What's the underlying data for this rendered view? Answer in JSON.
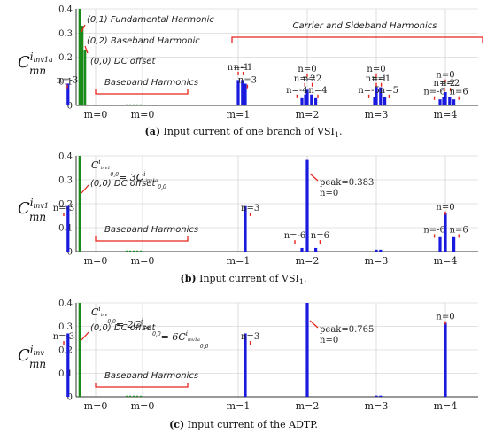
{
  "colors": {
    "blue": "#1a1adf",
    "green": "#1a8a1a",
    "red": "#e8251c",
    "grid": "#c8c8c8",
    "axis": "#333333"
  },
  "chart_data": [
    {
      "type": "bar",
      "panel": "a",
      "ylabel_main": "C",
      "ylabel_sub": "mn",
      "ylabel_sup": "i",
      "ylabel_sup_sub": "inv1a",
      "ylim": [
        0,
        0.4
      ],
      "yticks": [
        "0",
        "0.1",
        "0.2",
        "0.3",
        "0.4"
      ],
      "xticks": [
        "m=0",
        "m=0",
        "m=1",
        "m=2",
        "m=3",
        "m=4"
      ],
      "caption_label": "(a)",
      "caption_text": "Input current of one branch of VSI",
      "caption_sub": "1",
      "caption_end": ".",
      "green_bars": [
        {
          "x": 0.0,
          "value": 0.4
        },
        {
          "x": 0.012,
          "value": 0.33
        },
        {
          "x": 0.024,
          "value": 0.23
        }
      ],
      "blue_bars": [
        {
          "x": 1.0,
          "n": -1,
          "value": 0.105
        },
        {
          "x": 1.06,
          "n": 1,
          "value": 0.105
        },
        {
          "x": 0.96,
          "n": -3,
          "value": 0.09
        },
        {
          "x": 1.1,
          "n": 3,
          "value": 0.09
        },
        {
          "x": 2.0,
          "n": 0,
          "value": 0.065
        },
        {
          "x": 1.95,
          "n": -2,
          "value": 0.045
        },
        {
          "x": 2.06,
          "n": 2,
          "value": 0.045
        },
        {
          "x": 1.9,
          "n": -4,
          "value": 0.03
        },
        {
          "x": 2.12,
          "n": 4,
          "value": 0.03
        },
        {
          "x": 3.0,
          "n": -1,
          "value": 0.075
        },
        {
          "x": 3.06,
          "n": 1,
          "value": 0.075
        },
        {
          "x": 2.95,
          "n": -5,
          "value": 0.035
        },
        {
          "x": 3.12,
          "n": 5,
          "value": 0.035
        },
        {
          "x": 4.0,
          "n": 0,
          "value": 0.055
        },
        {
          "x": 3.95,
          "n": -2,
          "value": 0.035
        },
        {
          "x": 4.06,
          "n": 2,
          "value": 0.035
        },
        {
          "x": 3.9,
          "n": -6,
          "value": 0.025
        },
        {
          "x": 4.12,
          "n": 6,
          "value": 0.025
        }
      ],
      "annotations": {
        "fund": "(0,1) Fundamental Harmonic",
        "base": "(0,2) Baseband Harmonic",
        "dc": "(0,0) DC offset",
        "baseband": "Baseband Harmonics",
        "carrier": "Carrier and Sideband Harmonics"
      },
      "n_labels": [
        {
          "text": "n=-1",
          "x": 1.0,
          "y": 0.147
        },
        {
          "text": "n=1",
          "x": 1.07,
          "y": 0.147
        },
        {
          "text": "n=-3",
          "x": 0.95,
          "y": 0.093
        },
        {
          "text": "n=3",
          "x": 1.13,
          "y": 0.093
        },
        {
          "text": "n=0",
          "x": 2.0,
          "y": 0.14
        },
        {
          "text": "n=-2",
          "x": 1.94,
          "y": 0.1
        },
        {
          "text": "n=2",
          "x": 2.07,
          "y": 0.1
        },
        {
          "text": "n=-4",
          "x": 1.83,
          "y": 0.052
        },
        {
          "text": "n=4",
          "x": 2.15,
          "y": 0.052
        },
        {
          "text": "n=0",
          "x": 3.0,
          "y": 0.14
        },
        {
          "text": "n=-1",
          "x": 3.0,
          "y": 0.1
        },
        {
          "text": "n=1",
          "x": 3.07,
          "y": 0.1
        },
        {
          "text": "n=-5",
          "x": 2.87,
          "y": 0.052
        },
        {
          "text": "n=5",
          "x": 3.18,
          "y": 0.052
        },
        {
          "text": "n=0",
          "x": 4.0,
          "y": 0.115
        },
        {
          "text": "n=-2",
          "x": 3.96,
          "y": 0.08
        },
        {
          "text": "n=2",
          "x": 4.07,
          "y": 0.08
        },
        {
          "text": "n=-6",
          "x": 3.82,
          "y": 0.045
        },
        {
          "text": "n=6",
          "x": 4.19,
          "y": 0.045
        }
      ]
    },
    {
      "type": "bar",
      "panel": "b",
      "ylabel_main": "C",
      "ylabel_sub": "mn",
      "ylabel_sup": "i",
      "ylabel_sup_sub": "inv1",
      "ylim": [
        0,
        0.4
      ],
      "yticks": [
        "0",
        "0.1",
        "0.2",
        "0.3",
        "0.4"
      ],
      "xticks": [
        "m=0",
        "m=0",
        "m=1",
        "m=2",
        "m=3",
        "m=4"
      ],
      "caption_label": "(b)",
      "caption_text": "Input current of VSI",
      "caption_sub": "1",
      "caption_end": ".",
      "green_bars": [
        {
          "x": 0.0,
          "value": 0.4
        }
      ],
      "blue_bars": [
        {
          "x": 0.96,
          "n": -3,
          "value": 0.19
        },
        {
          "x": 1.1,
          "n": 3,
          "value": 0.19
        },
        {
          "x": 2.0,
          "n": 0,
          "value": 0.383
        },
        {
          "x": 1.9,
          "n": -6,
          "value": 0.015
        },
        {
          "x": 2.12,
          "n": 6,
          "value": 0.015
        },
        {
          "x": 3.0,
          "n": 0,
          "value": 0.008
        },
        {
          "x": 3.06,
          "n": 1,
          "value": 0.008
        },
        {
          "x": 4.0,
          "n": 0,
          "value": 0.16
        },
        {
          "x": 3.9,
          "n": -6,
          "value": 0.06
        },
        {
          "x": 4.12,
          "n": 6,
          "value": 0.06
        }
      ],
      "annotations": {
        "eq_left": "C",
        "eq_sup_left": "i",
        "eq_sup_left_sub": "inv1",
        "eq_sub_left": "0,0",
        "eq_mid": "= 3",
        "eq_right": "C",
        "eq_sup_right": "i",
        "eq_sup_right_sub": "inv1a",
        "eq_sub_right": "0,0",
        "dc": "(0,0) DC offset",
        "baseband": "Baseband Harmonics",
        "peak": "peak=0.383",
        "peak_n": "n=0"
      },
      "n_labels": [
        {
          "text": "n=-3",
          "x": 0.9,
          "y": 0.17
        },
        {
          "text": "n=3",
          "x": 1.17,
          "y": 0.17
        },
        {
          "text": "n=-6",
          "x": 1.8,
          "y": 0.055
        },
        {
          "text": "n=6",
          "x": 2.18,
          "y": 0.055
        },
        {
          "text": "n=0",
          "x": 4.0,
          "y": 0.175
        },
        {
          "text": "n=-6",
          "x": 3.82,
          "y": 0.08
        },
        {
          "text": "n=6",
          "x": 4.19,
          "y": 0.08
        }
      ]
    },
    {
      "type": "bar",
      "panel": "c",
      "ylabel_main": "C",
      "ylabel_sub": "mn",
      "ylabel_sup": "i",
      "ylabel_sup_sub": "inv",
      "ylim": [
        0,
        0.4
      ],
      "yticks": [
        "0",
        "0.1",
        "0.2",
        "0.3",
        "0.4"
      ],
      "xticks": [
        "m=0",
        "m=0",
        "m=1",
        "m=2",
        "m=3",
        "m=4"
      ],
      "caption_label": "(c)",
      "caption_text": "Input current of the ADTP.",
      "caption_sub": "",
      "caption_end": "",
      "green_bars": [
        {
          "x": 0.0,
          "value": 0.4
        }
      ],
      "blue_bars": [
        {
          "x": 0.96,
          "n": -3,
          "value": 0.27
        },
        {
          "x": 1.1,
          "n": 3,
          "value": 0.27
        },
        {
          "x": 2.0,
          "n": 0,
          "value": 0.4
        },
        {
          "x": 3.0,
          "n": 0,
          "value": 0.005
        },
        {
          "x": 3.06,
          "n": 1,
          "value": 0.005
        },
        {
          "x": 4.0,
          "n": 0,
          "value": 0.315
        }
      ],
      "annotations": {
        "eq_left": "C",
        "eq_sup_left": "i",
        "eq_sup_left_sub": "inv",
        "eq_sub_left": "0,0",
        "eq_mid": "= 2",
        "eq_mid2_main": "C",
        "eq_mid2_sup": "i",
        "eq_mid2_sup_sub": "inv1",
        "eq_mid2_sub": "0,0",
        "eq_mid3": "= 6",
        "eq_right": "C",
        "eq_sup_right": "i",
        "eq_sup_right_sub": "inv1a",
        "eq_sub_right": "0,0",
        "dc": "(0,0) DC offset",
        "baseband": "Baseband Harmonics",
        "peak": "peak=0.765",
        "peak_n": "n=0"
      },
      "n_labels": [
        {
          "text": "n=-3",
          "x": 0.9,
          "y": 0.245
        },
        {
          "text": "n=3",
          "x": 1.17,
          "y": 0.245
        },
        {
          "text": "n=0",
          "x": 4.0,
          "y": 0.33
        }
      ]
    }
  ]
}
